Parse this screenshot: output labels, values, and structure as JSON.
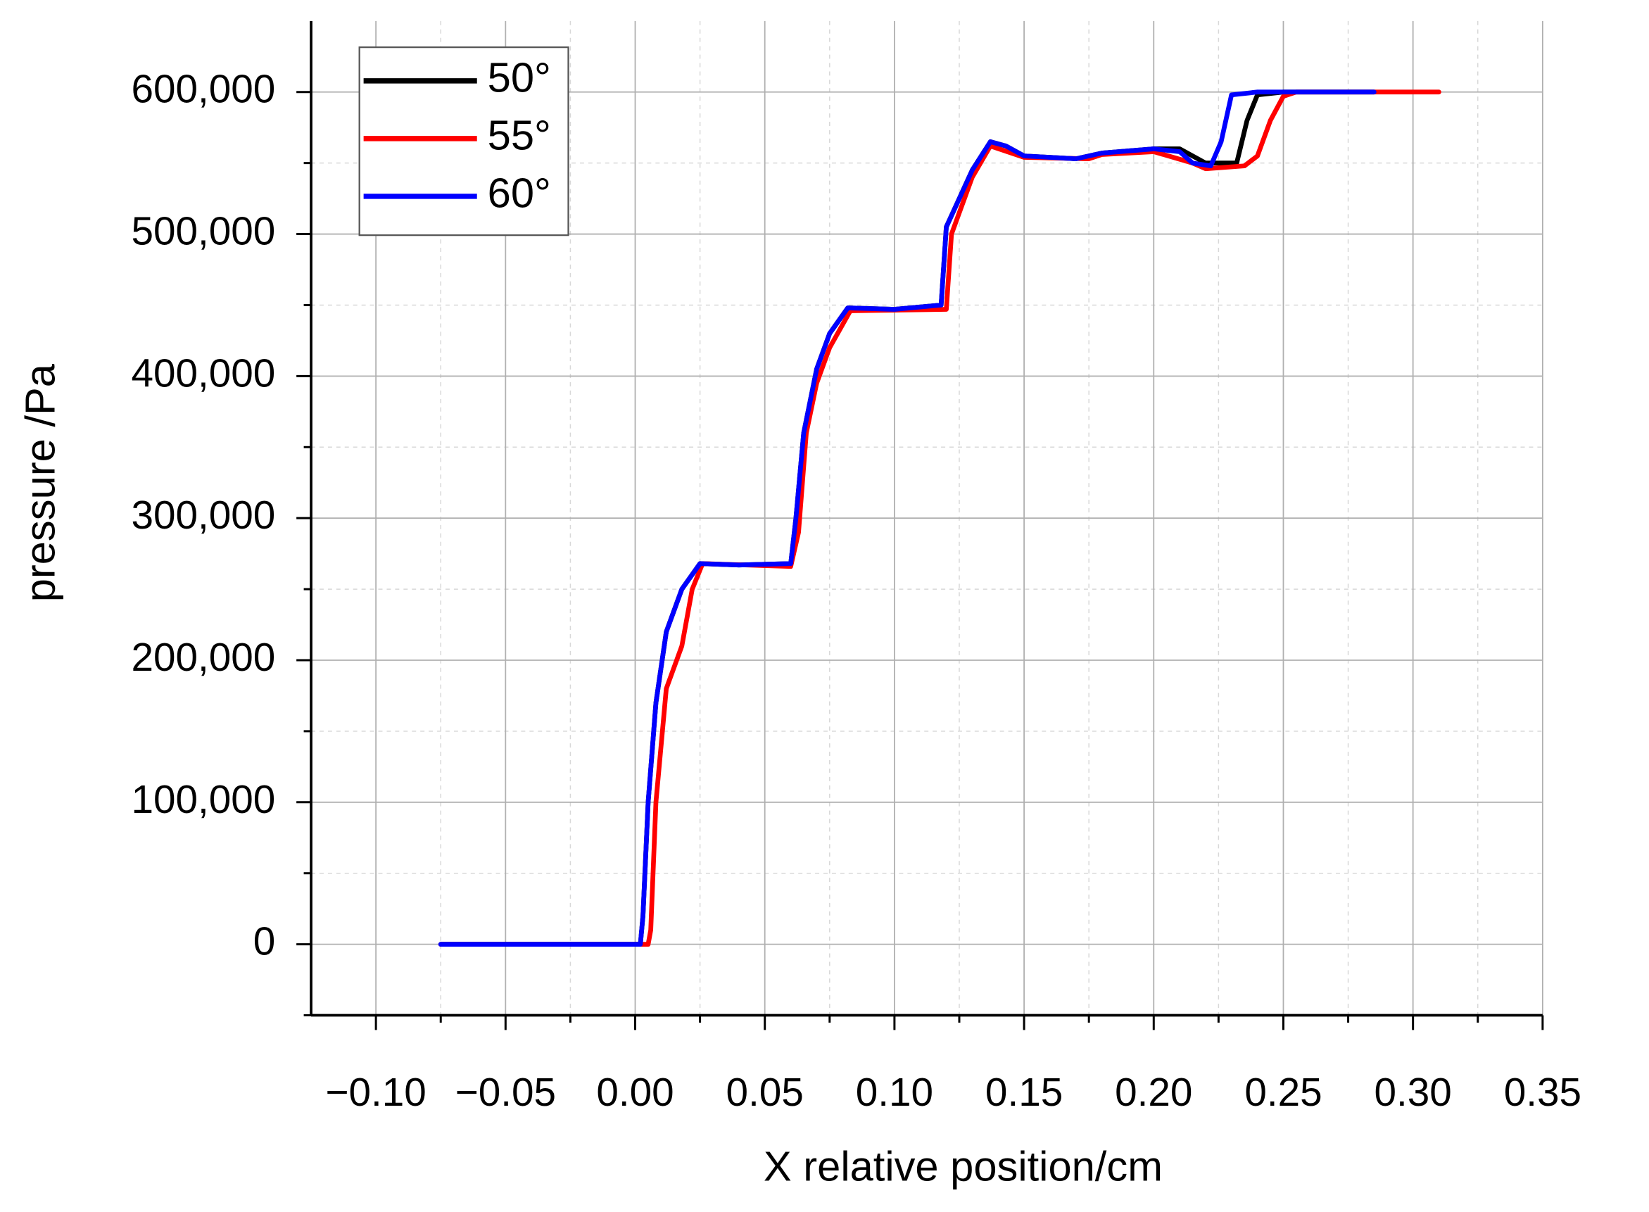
{
  "chart_data": {
    "type": "line",
    "x_label": "X relative position/cm",
    "y_label": "pressure /Pa",
    "xlim": [
      -0.125,
      0.35
    ],
    "ylim": [
      -50000,
      650000
    ],
    "xticks": [
      {
        "value": -0.1,
        "label": "−0.10"
      },
      {
        "value": -0.05,
        "label": "−0.05"
      },
      {
        "value": 0,
        "label": "0.00"
      },
      {
        "value": 0.05,
        "label": "0.05"
      },
      {
        "value": 0.1,
        "label": "0.10"
      },
      {
        "value": 0.15,
        "label": "0.15"
      },
      {
        "value": 0.2,
        "label": "0.20"
      },
      {
        "value": 0.25,
        "label": "0.25"
      },
      {
        "value": 0.3,
        "label": "0.30"
      },
      {
        "value": 0.35,
        "label": "0.35"
      }
    ],
    "yticks": [
      0,
      {
        "value": 100000,
        "label": "100,000"
      },
      {
        "value": 200000,
        "label": "200,000"
      },
      {
        "value": 300000,
        "label": "300,000"
      },
      {
        "value": 400000,
        "label": "400,000"
      },
      {
        "value": 500000,
        "label": "500,000"
      },
      {
        "value": 600000,
        "label": "600,000"
      }
    ],
    "xminorticks": [
      -0.075,
      -0.025,
      0.025,
      0.075,
      0.125,
      0.175,
      0.225,
      0.275,
      0.325
    ],
    "yminorticks": [
      -50000,
      50000,
      150000,
      250000,
      350000,
      450000,
      550000
    ],
    "grid": true,
    "legend": "top-left",
    "series": [
      {
        "name": "50°",
        "color": "#000000",
        "x": [
          -0.075,
          0.002,
          0.003,
          0.005,
          0.008,
          0.012,
          0.018,
          0.025,
          0.04,
          0.06,
          0.062,
          0.065,
          0.07,
          0.075,
          0.082,
          0.1,
          0.118,
          0.12,
          0.125,
          0.13,
          0.137,
          0.143,
          0.15,
          0.17,
          0.18,
          0.2,
          0.21,
          0.22,
          0.232,
          0.236,
          0.24,
          0.25,
          0.285
        ],
        "values": [
          0,
          0,
          20000,
          100000,
          170000,
          220000,
          250000,
          268000,
          267000,
          268000,
          300000,
          360000,
          405000,
          430000,
          448000,
          447000,
          450000,
          505000,
          525000,
          545000,
          565000,
          562000,
          555000,
          553000,
          557000,
          560000,
          560000,
          550000,
          550000,
          580000,
          598000,
          600000,
          600000
        ]
      },
      {
        "name": "55°",
        "color": "#ff0000",
        "x": [
          -0.075,
          0.005,
          0.006,
          0.008,
          0.012,
          0.018,
          0.022,
          0.026,
          0.06,
          0.063,
          0.066,
          0.07,
          0.075,
          0.083,
          0.12,
          0.122,
          0.13,
          0.137,
          0.15,
          0.175,
          0.18,
          0.2,
          0.215,
          0.22,
          0.235,
          0.24,
          0.245,
          0.25,
          0.255,
          0.31
        ],
        "values": [
          0,
          0,
          10000,
          100000,
          180000,
          210000,
          250000,
          268000,
          266000,
          290000,
          360000,
          395000,
          420000,
          446000,
          447000,
          500000,
          540000,
          562000,
          554000,
          553000,
          556000,
          558000,
          550000,
          546000,
          548000,
          555000,
          580000,
          597000,
          600000,
          600000
        ]
      },
      {
        "name": "60°",
        "color": "#0000ff",
        "x": [
          -0.075,
          0.002,
          0.003,
          0.005,
          0.008,
          0.012,
          0.018,
          0.025,
          0.04,
          0.06,
          0.062,
          0.065,
          0.07,
          0.075,
          0.082,
          0.1,
          0.118,
          0.12,
          0.125,
          0.13,
          0.137,
          0.143,
          0.15,
          0.17,
          0.18,
          0.2,
          0.21,
          0.215,
          0.222,
          0.226,
          0.23,
          0.24,
          0.285
        ],
        "values": [
          0,
          0,
          20000,
          100000,
          170000,
          220000,
          250000,
          268000,
          267000,
          268000,
          300000,
          360000,
          405000,
          430000,
          448000,
          447000,
          450000,
          505000,
          525000,
          545000,
          565000,
          562000,
          555000,
          553000,
          557000,
          560000,
          558000,
          550000,
          548000,
          565000,
          598000,
          600000,
          600000
        ]
      }
    ]
  }
}
